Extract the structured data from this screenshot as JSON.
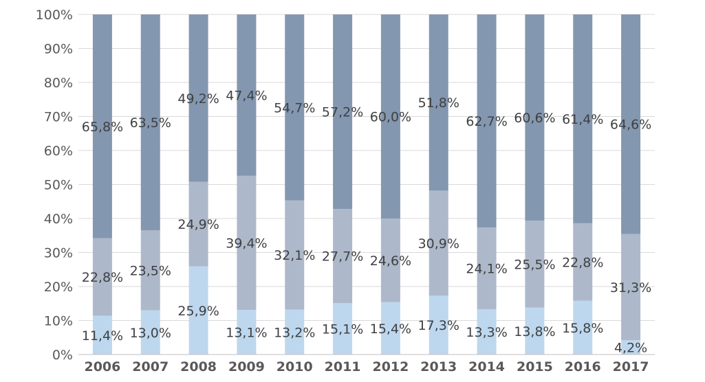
{
  "colors": {
    "series_bottom": "#BDD7EE",
    "series_middle": "#ADB9CA",
    "series_top": "#8497B0",
    "grid": "#D9D9D9",
    "text": "#595959"
  },
  "chart_data": {
    "type": "bar",
    "stacked": true,
    "percent_stacked": true,
    "title": "",
    "xlabel": "",
    "ylabel": "",
    "ylim": [
      0,
      100
    ],
    "y_ticks": [
      "0%",
      "10%",
      "20%",
      "30%",
      "40%",
      "50%",
      "60%",
      "70%",
      "80%",
      "90%",
      "100%"
    ],
    "grid": true,
    "legend": "none",
    "categories": [
      "2006",
      "2007",
      "2008",
      "2009",
      "2010",
      "2011",
      "2012",
      "2013",
      "2014",
      "2015",
      "2016",
      "2017"
    ],
    "series": [
      {
        "values": [
          11.4,
          13.0,
          25.9,
          13.1,
          13.2,
          15.1,
          15.4,
          17.3,
          13.3,
          13.8,
          15.8,
          4.2
        ],
        "labels": [
          "11,4%",
          "13,0%",
          "25,9%",
          "13,1%",
          "13,2%",
          "15,1%",
          "15,4%",
          "17,3%",
          "13,3%",
          "13,8%",
          "15,8%",
          "4,2%"
        ]
      },
      {
        "values": [
          22.8,
          23.5,
          24.9,
          39.4,
          32.1,
          27.7,
          24.6,
          30.9,
          24.1,
          25.5,
          22.8,
          31.3
        ],
        "labels": [
          "22,8%",
          "23,5%",
          "24,9%",
          "39,4%",
          "32,1%",
          "27,7%",
          "24,6%",
          "30,9%",
          "24,1%",
          "25,5%",
          "22,8%",
          "31,3%"
        ]
      },
      {
        "values": [
          65.8,
          63.5,
          49.2,
          47.4,
          54.7,
          57.2,
          60.0,
          51.8,
          62.7,
          60.6,
          61.4,
          64.6
        ],
        "labels": [
          "65,8%",
          "63,5%",
          "49,2%",
          "47,4%",
          "54,7%",
          "57,2%",
          "60,0%",
          "51,8%",
          "62,7%",
          "60,6%",
          "61,4%",
          "64,6%"
        ]
      }
    ]
  }
}
